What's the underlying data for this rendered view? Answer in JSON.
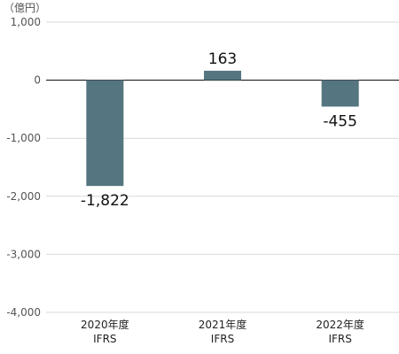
{
  "chart_data": {
    "type": "bar",
    "unit_label": "（億円）",
    "categories": [
      {
        "line1": "2020年度",
        "line2": "IFRS"
      },
      {
        "line1": "2021年度",
        "line2": "IFRS"
      },
      {
        "line1": "2022年度",
        "line2": "IFRS"
      }
    ],
    "values": [
      -1822,
      163,
      -455
    ],
    "value_labels": [
      "-1,822",
      "163",
      "-455"
    ],
    "y_ticks": [
      1000,
      0,
      -1000,
      -2000,
      -3000,
      -4000
    ],
    "y_tick_labels": [
      "1,000",
      "0",
      "-1,000",
      "-2,000",
      "-3,000",
      "-4,000"
    ],
    "ylim": [
      -4000,
      1000
    ],
    "grid": true,
    "colors": {
      "bar": "#557580"
    }
  }
}
